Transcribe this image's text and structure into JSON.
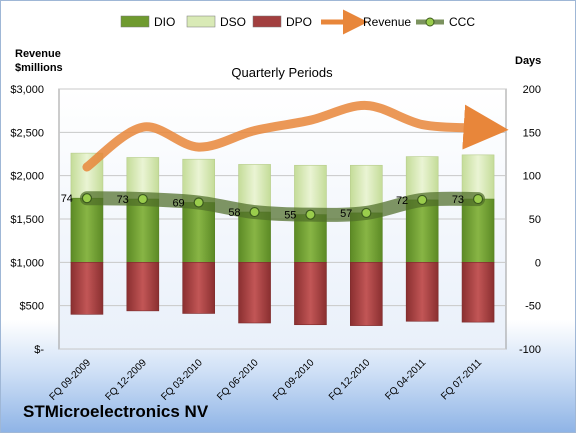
{
  "company_name": "STMicroelectronics NV",
  "chart_data": {
    "type": "bar",
    "subtype": "stacked bar with line overlays",
    "title": "Quarterly Periods",
    "categories": [
      "FQ 09-2009",
      "FQ 12-2009",
      "FQ 03-2010",
      "FQ 06-2010",
      "FQ 09-2010",
      "FQ 12-2010",
      "FQ 04-2011",
      "FQ 07-2011"
    ],
    "left_axis": {
      "label_line1": "Revenue",
      "label_line2": "$millions",
      "ylim": [
        0,
        3000
      ],
      "ticks": [
        0,
        500,
        1000,
        1500,
        2000,
        2500,
        3000
      ],
      "tick_labels": [
        "$-",
        "$500",
        "$1,000",
        "$1,500",
        "$2,000",
        "$2,500",
        "$3,000"
      ]
    },
    "right_axis": {
      "label": "Days",
      "ylim": [
        -100,
        200
      ],
      "ticks": [
        -100,
        -50,
        0,
        50,
        100,
        150,
        200
      ],
      "tick_labels": [
        "-100",
        "-50",
        "0",
        "50",
        "100",
        "150",
        "200"
      ]
    },
    "legend": {
      "placement": "top",
      "entries": [
        {
          "label": "DIO",
          "kind": "box",
          "color": "#6f9a2f"
        },
        {
          "label": "DSO",
          "kind": "box",
          "color": "#d9eab6"
        },
        {
          "label": "DPO",
          "kind": "box",
          "color": "#a23f3f"
        },
        {
          "label": "Revenue",
          "kind": "arrow",
          "color": "#e8863a"
        },
        {
          "label": "CCC",
          "kind": "line-marker",
          "color": "#4f6e28"
        }
      ]
    },
    "series": [
      {
        "name": "DIO",
        "axis": "right",
        "color": "#6f9a2f",
        "values": [
          74,
          73,
          69,
          58,
          55,
          57,
          72,
          73
        ]
      },
      {
        "name": "DSO",
        "axis": "right",
        "color": "#d9eab6",
        "values": [
          52,
          48,
          50,
          55,
          57,
          55,
          50,
          51
        ]
      },
      {
        "name": "DPO",
        "axis": "right",
        "color": "#a23f3f",
        "values": [
          -60,
          -56,
          -59,
          -70,
          -72,
          -73,
          -68,
          -69
        ]
      },
      {
        "name": "CCC",
        "axis": "right",
        "color": "#4f6e28",
        "values": [
          74,
          73,
          69,
          58,
          55,
          57,
          72,
          73
        ],
        "labels": [
          "74",
          "73",
          "69",
          "58",
          "55",
          "57",
          "72",
          "73"
        ]
      },
      {
        "name": "Revenue",
        "axis": "left",
        "color": "#e8863a",
        "values": [
          2100,
          2560,
          2330,
          2520,
          2640,
          2810,
          2590,
          2550
        ]
      }
    ],
    "grid": true
  }
}
